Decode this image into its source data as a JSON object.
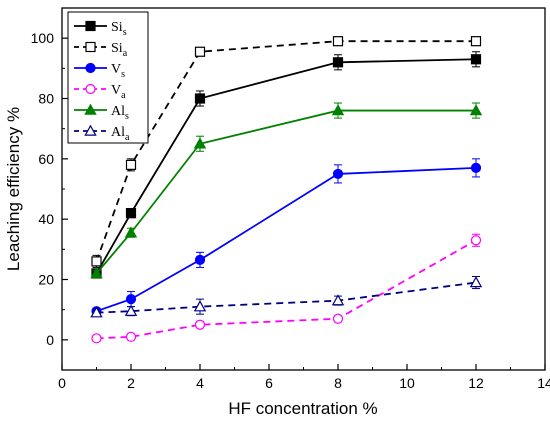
{
  "chart_data": {
    "type": "line",
    "xlabel": "HF concentration %",
    "ylabel": "Leaching efficiency %",
    "xlim": [
      0,
      14
    ],
    "ylim": [
      -10,
      110
    ],
    "xticks": [
      0,
      2,
      4,
      6,
      8,
      10,
      12,
      14
    ],
    "yticks": [
      0,
      20,
      40,
      60,
      80,
      100
    ],
    "grid": false,
    "legend_position": "top-left",
    "series": [
      {
        "name": "Si",
        "sub": "s",
        "color": "#000000",
        "dash": false,
        "marker": "square",
        "filled": true,
        "x": [
          1,
          2,
          4,
          8,
          12
        ],
        "y": [
          22,
          42,
          80,
          92,
          93
        ],
        "err": [
          1,
          1.5,
          2.5,
          2.5,
          2.5
        ]
      },
      {
        "name": "Si",
        "sub": "a",
        "color": "#000000",
        "dash": true,
        "marker": "square",
        "filled": false,
        "x": [
          1,
          2,
          4,
          8,
          12
        ],
        "y": [
          26,
          58,
          95.5,
          99,
          99
        ],
        "err": [
          2,
          2,
          1,
          1,
          1
        ]
      },
      {
        "name": "V",
        "sub": "s",
        "color": "#0000ff",
        "dash": false,
        "marker": "circle",
        "filled": true,
        "x": [
          1,
          2,
          4,
          8,
          12
        ],
        "y": [
          9.5,
          13.5,
          26.5,
          55,
          57
        ],
        "err": [
          1,
          2.5,
          2.5,
          3,
          3
        ]
      },
      {
        "name": "V",
        "sub": "a",
        "color": "#ff00ff",
        "dash": true,
        "marker": "circle",
        "filled": false,
        "x": [
          1,
          2,
          4,
          8,
          12
        ],
        "y": [
          0.5,
          1,
          5,
          7,
          33
        ],
        "err": [
          1,
          1,
          1,
          1,
          2
        ]
      },
      {
        "name": "Al",
        "sub": "s",
        "color": "#008000",
        "dash": false,
        "marker": "triangle",
        "filled": true,
        "x": [
          1,
          2,
          4,
          8,
          12
        ],
        "y": [
          22,
          35.5,
          65,
          76,
          76
        ],
        "err": [
          1,
          1.5,
          2.5,
          2.5,
          2.5
        ]
      },
      {
        "name": "Al",
        "sub": "a",
        "color": "#000080",
        "dash": true,
        "marker": "triangle",
        "filled": false,
        "x": [
          1,
          2,
          4,
          8,
          12
        ],
        "y": [
          9,
          9.5,
          11,
          13,
          19
        ],
        "err": [
          1,
          1.5,
          2.5,
          1.5,
          2
        ]
      }
    ]
  }
}
